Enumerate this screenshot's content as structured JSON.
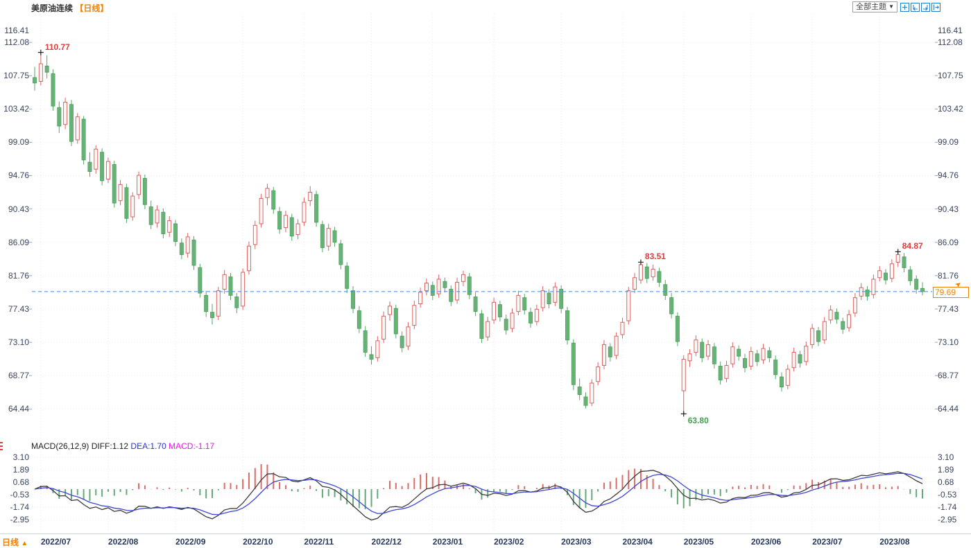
{
  "header": {
    "title": "美原油连续",
    "period_tag": "【日线】"
  },
  "toolbar": {
    "theme_label": "全部主题",
    "caret": "▼",
    "icons": [
      "crosshair-icon",
      "axis-left-icon",
      "axis-right-icon",
      "shift-right-icon"
    ],
    "icon_color": "#1d7fd0"
  },
  "bottom_bar": {
    "period_label": "日线",
    "up_arrow": "▲"
  },
  "macd": {
    "params": "MACD(26,12,9)",
    "diff_label": "DIFF:1.12",
    "dea_label": "DEA:1.70",
    "macd_label": "MACD:-1.17",
    "axis_ticks": [
      "3.10",
      "1.89",
      "0.68",
      "-0.53",
      "-1.74",
      "-2.95"
    ]
  },
  "price_line": {
    "value": 79.69,
    "label": "79.69",
    "line_color": "#2e8cf0",
    "badge_color": "#f08200",
    "arrow": "➤"
  },
  "colors": {
    "up": "#d8524e",
    "up_fill": "#ffffff",
    "down": "#439c55",
    "down_fill": "#5fae70",
    "grid": "#e7e7e7",
    "axis_text": "#36435f",
    "diff_line": "#3a3a3a",
    "dea_line": "#3d45d5",
    "hist_pos": "#dd6b66",
    "hist_neg": "#64a878",
    "annotation_high": "#e03b3b",
    "annotation_low": "#3fa050"
  },
  "chart_data": {
    "type": "candlestick",
    "title": "美原油连续 日线 (US Crude Oil Continuous, Daily)",
    "price_axis_ticks": [
      116.41,
      112.08,
      107.75,
      103.42,
      99.09,
      94.76,
      90.43,
      86.09,
      81.76,
      77.43,
      73.1,
      68.77,
      64.44
    ],
    "macd_axis_ticks": [
      3.1,
      1.89,
      0.68,
      -0.53,
      -1.74,
      -2.95
    ],
    "last_price": 79.69,
    "months": [
      {
        "label": "2022/07",
        "index": 1
      },
      {
        "label": "2022/08",
        "index": 12
      },
      {
        "label": "2022/09",
        "index": 23
      },
      {
        "label": "2022/10",
        "index": 34
      },
      {
        "label": "2022/11",
        "index": 44
      },
      {
        "label": "2022/12",
        "index": 55
      },
      {
        "label": "2023/01",
        "index": 65
      },
      {
        "label": "2023/02",
        "index": 75
      },
      {
        "label": "2023/03",
        "index": 86
      },
      {
        "label": "2023/04",
        "index": 96
      },
      {
        "label": "2023/05",
        "index": 106
      },
      {
        "label": "2023/06",
        "index": 117
      },
      {
        "label": "2023/07",
        "index": 127
      },
      {
        "label": "2023/08",
        "index": 138
      }
    ],
    "annotations": [
      {
        "text": "110.77",
        "candle": 1,
        "price": 110.77,
        "type": "high"
      },
      {
        "text": "83.51",
        "candle": 99,
        "price": 83.51,
        "type": "high"
      },
      {
        "text": "84.87",
        "candle": 141,
        "price": 84.87,
        "type": "high"
      },
      {
        "text": "63.80",
        "candle": 106,
        "price": 63.8,
        "type": "low"
      }
    ],
    "candles": [
      [
        107.5,
        108.9,
        105.8,
        106.8
      ],
      [
        107.0,
        110.77,
        106.5,
        109.3
      ],
      [
        109.0,
        110.4,
        107.4,
        108.2
      ],
      [
        108.0,
        108.6,
        103.2,
        103.8
      ],
      [
        103.6,
        104.4,
        100.3,
        101.2
      ],
      [
        101.4,
        104.9,
        100.8,
        104.3
      ],
      [
        104.0,
        104.6,
        98.6,
        99.2
      ],
      [
        99.4,
        102.9,
        98.9,
        102.4
      ],
      [
        102.1,
        102.5,
        96.2,
        96.8
      ],
      [
        96.5,
        97.8,
        94.6,
        95.3
      ],
      [
        95.6,
        98.7,
        95.0,
        98.2
      ],
      [
        97.8,
        98.3,
        93.5,
        94.1
      ],
      [
        94.3,
        97.1,
        93.8,
        96.6
      ],
      [
        96.2,
        96.7,
        90.6,
        91.2
      ],
      [
        91.5,
        94.2,
        90.9,
        93.6
      ],
      [
        93.2,
        93.7,
        88.6,
        89.2
      ],
      [
        89.4,
        92.6,
        88.9,
        92.1
      ],
      [
        92.3,
        95.3,
        91.7,
        94.8
      ],
      [
        94.4,
        94.9,
        90.4,
        91.0
      ],
      [
        90.7,
        91.5,
        87.8,
        88.4
      ],
      [
        88.6,
        90.9,
        88.0,
        90.3
      ],
      [
        90.0,
        90.5,
        86.6,
        87.2
      ],
      [
        87.4,
        89.5,
        86.8,
        88.9
      ],
      [
        88.5,
        89.0,
        85.6,
        86.2
      ],
      [
        86.0,
        86.6,
        83.9,
        84.5
      ],
      [
        84.7,
        87.3,
        84.1,
        86.8
      ],
      [
        86.4,
        86.9,
        82.5,
        83.1
      ],
      [
        82.8,
        83.3,
        78.9,
        79.5
      ],
      [
        79.2,
        79.8,
        76.4,
        77.1
      ],
      [
        77.0,
        78.1,
        75.4,
        76.3
      ],
      [
        76.5,
        80.3,
        76.0,
        79.8
      ],
      [
        80.0,
        82.5,
        79.4,
        81.9
      ],
      [
        81.6,
        82.1,
        78.6,
        79.2
      ],
      [
        79.0,
        79.5,
        76.9,
        77.6
      ],
      [
        77.8,
        82.7,
        77.3,
        82.2
      ],
      [
        82.4,
        86.2,
        81.9,
        85.6
      ],
      [
        85.8,
        88.9,
        85.2,
        88.3
      ],
      [
        88.5,
        92.4,
        88.0,
        91.8
      ],
      [
        91.9,
        93.7,
        90.9,
        93.1
      ],
      [
        92.8,
        93.3,
        89.8,
        90.4
      ],
      [
        90.1,
        90.7,
        87.2,
        87.8
      ],
      [
        88.0,
        90.2,
        87.4,
        89.6
      ],
      [
        89.3,
        89.8,
        86.3,
        86.9
      ],
      [
        87.1,
        89.1,
        86.5,
        88.5
      ],
      [
        88.7,
        91.9,
        88.2,
        91.3
      ],
      [
        91.5,
        93.4,
        90.8,
        92.6
      ],
      [
        92.3,
        92.8,
        88.1,
        88.7
      ],
      [
        88.4,
        88.9,
        84.8,
        85.4
      ],
      [
        85.6,
        88.5,
        85.0,
        87.9
      ],
      [
        87.6,
        88.1,
        85.5,
        86.1
      ],
      [
        85.9,
        86.4,
        82.6,
        83.2
      ],
      [
        83.0,
        83.5,
        79.5,
        80.1
      ],
      [
        79.8,
        80.4,
        76.9,
        77.5
      ],
      [
        77.2,
        77.8,
        74.3,
        74.9
      ],
      [
        74.6,
        75.2,
        71.2,
        71.8
      ],
      [
        71.5,
        72.6,
        70.2,
        70.9
      ],
      [
        71.1,
        73.9,
        70.6,
        73.3
      ],
      [
        73.5,
        77.1,
        73.0,
        76.5
      ],
      [
        76.7,
        78.4,
        75.9,
        77.8
      ],
      [
        77.5,
        78.0,
        73.6,
        74.2
      ],
      [
        73.9,
        74.5,
        71.8,
        72.4
      ],
      [
        72.6,
        75.7,
        72.1,
        75.1
      ],
      [
        75.3,
        78.5,
        74.8,
        77.9
      ],
      [
        78.1,
        80.2,
        77.6,
        79.6
      ],
      [
        79.8,
        81.4,
        79.2,
        80.8
      ],
      [
        80.5,
        81.0,
        78.6,
        79.2
      ],
      [
        79.4,
        81.9,
        78.9,
        81.3
      ],
      [
        81.0,
        81.5,
        79.6,
        80.2
      ],
      [
        80.0,
        80.5,
        77.8,
        78.4
      ],
      [
        78.6,
        81.5,
        78.1,
        80.9
      ],
      [
        81.0,
        82.4,
        80.4,
        81.9
      ],
      [
        81.6,
        82.1,
        78.7,
        79.3
      ],
      [
        79.0,
        79.6,
        76.5,
        77.1
      ],
      [
        76.8,
        77.3,
        73.0,
        73.6
      ],
      [
        73.8,
        76.4,
        73.3,
        75.8
      ],
      [
        76.0,
        78.9,
        75.5,
        78.3
      ],
      [
        78.0,
        78.5,
        75.8,
        76.4
      ],
      [
        76.1,
        76.7,
        74.1,
        74.7
      ],
      [
        74.9,
        77.5,
        74.4,
        76.9
      ],
      [
        77.1,
        79.8,
        76.6,
        79.2
      ],
      [
        78.9,
        79.4,
        76.7,
        77.3
      ],
      [
        77.0,
        77.6,
        75.0,
        75.6
      ],
      [
        75.8,
        78.0,
        75.3,
        77.4
      ],
      [
        77.6,
        80.4,
        77.1,
        79.8
      ],
      [
        79.5,
        80.0,
        77.5,
        78.1
      ],
      [
        78.3,
        80.9,
        77.8,
        80.3
      ],
      [
        80.0,
        80.5,
        76.9,
        77.5
      ],
      [
        77.2,
        77.7,
        72.8,
        73.4
      ],
      [
        73.0,
        73.5,
        66.9,
        67.6
      ],
      [
        67.3,
        68.4,
        65.6,
        66.3
      ],
      [
        66.0,
        66.6,
        64.5,
        64.9
      ],
      [
        65.2,
        68.3,
        64.8,
        67.8
      ],
      [
        68.0,
        70.5,
        67.5,
        69.9
      ],
      [
        70.1,
        73.4,
        69.6,
        72.8
      ],
      [
        72.5,
        73.0,
        70.6,
        71.2
      ],
      [
        71.4,
        74.4,
        70.9,
        73.9
      ],
      [
        74.1,
        76.3,
        73.6,
        75.7
      ],
      [
        75.9,
        80.3,
        75.4,
        79.8
      ],
      [
        80.0,
        82.1,
        79.5,
        81.5
      ],
      [
        81.2,
        83.51,
        80.7,
        83.2
      ],
      [
        82.9,
        83.4,
        80.8,
        81.4
      ],
      [
        81.6,
        83.2,
        81.1,
        82.6
      ],
      [
        82.3,
        82.8,
        80.3,
        80.9
      ],
      [
        80.6,
        81.2,
        78.6,
        79.2
      ],
      [
        78.9,
        79.5,
        76.2,
        76.8
      ],
      [
        76.5,
        77.0,
        72.6,
        73.2
      ],
      [
        66.8,
        71.4,
        63.8,
        70.9
      ],
      [
        70.7,
        72.2,
        69.9,
        71.6
      ],
      [
        71.8,
        74.0,
        71.3,
        73.4
      ],
      [
        73.1,
        73.6,
        70.5,
        71.1
      ],
      [
        71.3,
        73.4,
        70.8,
        72.8
      ],
      [
        72.5,
        73.0,
        69.7,
        70.3
      ],
      [
        70.0,
        70.6,
        67.6,
        68.2
      ],
      [
        68.4,
        70.7,
        67.9,
        70.1
      ],
      [
        70.3,
        73.1,
        69.8,
        72.5
      ],
      [
        72.2,
        72.7,
        70.7,
        71.3
      ],
      [
        71.0,
        71.6,
        69.2,
        69.8
      ],
      [
        70.0,
        72.5,
        69.5,
        71.9
      ],
      [
        71.6,
        72.1,
        70.0,
        70.6
      ],
      [
        70.8,
        72.9,
        70.3,
        72.3
      ],
      [
        72.0,
        72.5,
        70.5,
        71.1
      ],
      [
        70.8,
        71.4,
        68.3,
        68.9
      ],
      [
        68.6,
        69.2,
        66.7,
        67.3
      ],
      [
        67.5,
        70.2,
        67.0,
        69.6
      ],
      [
        69.8,
        72.4,
        69.3,
        71.8
      ],
      [
        71.5,
        72.0,
        69.8,
        70.4
      ],
      [
        70.6,
        73.2,
        70.1,
        72.6
      ],
      [
        72.8,
        75.5,
        72.3,
        74.9
      ],
      [
        74.6,
        75.1,
        72.6,
        73.2
      ],
      [
        73.4,
        76.4,
        72.9,
        75.8
      ],
      [
        76.0,
        77.9,
        75.5,
        77.3
      ],
      [
        77.0,
        77.5,
        75.5,
        76.1
      ],
      [
        75.8,
        76.3,
        74.2,
        74.8
      ],
      [
        75.0,
        77.3,
        74.5,
        76.7
      ],
      [
        76.9,
        79.5,
        76.4,
        78.9
      ],
      [
        79.1,
        80.8,
        78.6,
        80.2
      ],
      [
        79.9,
        80.4,
        78.5,
        79.1
      ],
      [
        79.3,
        81.9,
        78.8,
        81.3
      ],
      [
        81.5,
        83.0,
        81.0,
        82.4
      ],
      [
        82.1,
        82.6,
        80.6,
        81.2
      ],
      [
        81.4,
        83.9,
        80.9,
        83.3
      ],
      [
        83.5,
        84.87,
        82.9,
        84.5
      ],
      [
        84.2,
        84.7,
        82.2,
        82.8
      ],
      [
        82.5,
        83.0,
        80.5,
        81.1
      ],
      [
        81.3,
        81.8,
        79.4,
        80.0
      ],
      [
        80.1,
        80.9,
        79.2,
        79.69
      ]
    ]
  }
}
